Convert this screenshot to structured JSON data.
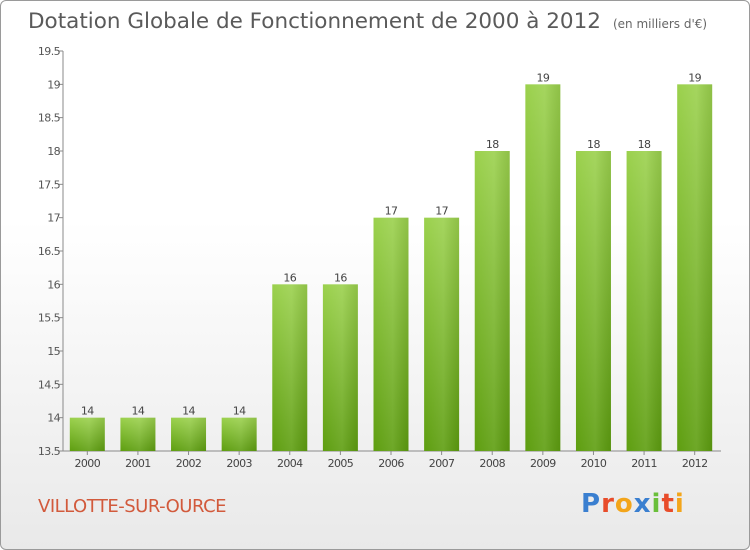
{
  "title": "Dotation Globale de Fonctionnement de 2000 à 2012",
  "unit_note": "(en milliers d'€)",
  "commune": "VILLOTTE-SUR-OURCE",
  "brand": "Proxiti",
  "colors": {
    "bar_top": "#9bd14d",
    "bar_bottom": "#5e9e10",
    "title": "#5a5a5a",
    "commune": "#d25a3c"
  },
  "chart_data": {
    "type": "bar",
    "title": "Dotation Globale de Fonctionnement de 2000 à 2012",
    "subtitle": "(en milliers d'€)",
    "xlabel": "",
    "ylabel": "",
    "categories": [
      "2000",
      "2001",
      "2002",
      "2003",
      "2004",
      "2005",
      "2006",
      "2007",
      "2008",
      "2009",
      "2010",
      "2011",
      "2012"
    ],
    "values": [
      14,
      14,
      14,
      14,
      16,
      16,
      17,
      17,
      18,
      19,
      18,
      18,
      19
    ],
    "data_labels": [
      "14",
      "14",
      "14",
      "14",
      "16",
      "16",
      "17",
      "17",
      "18",
      "19",
      "18",
      "18",
      "19"
    ],
    "ylim": [
      13.5,
      19.5
    ],
    "yticks": [
      "13.5",
      "14",
      "14.5",
      "15",
      "15.5",
      "16",
      "16.5",
      "17",
      "17.5",
      "18",
      "18.5",
      "19",
      "19.5"
    ],
    "grid": false,
    "legend": "none"
  }
}
